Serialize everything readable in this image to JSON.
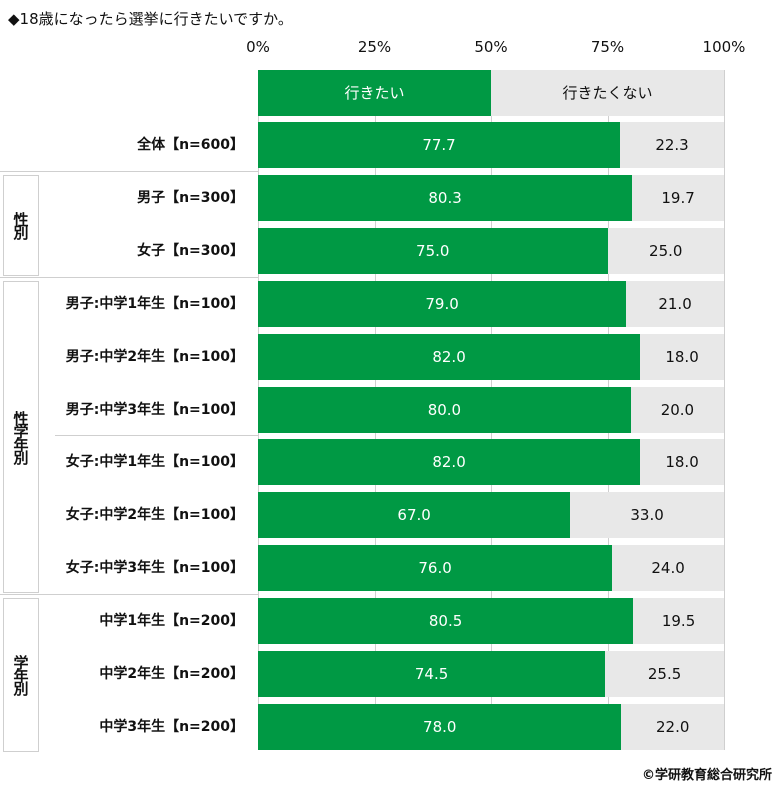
{
  "chart_data": {
    "type": "bar",
    "stacked": true,
    "orientation": "horizontal",
    "title": "◆18歳になったら選挙に行きたいですか。",
    "xlim": [
      0,
      100
    ],
    "xticks": [
      "0%",
      "25%",
      "50%",
      "75%",
      "100%"
    ],
    "legend": [
      {
        "name": "行きたい",
        "color": "#009944"
      },
      {
        "name": "行きたくない",
        "color": "#e8e8e8"
      }
    ],
    "legend_placement": "top",
    "categories": [
      "全体【n=600】",
      "男子【n=300】",
      "女子【n=300】",
      "男子:中学1年生【n=100】",
      "男子:中学2年生【n=100】",
      "男子:中学3年生【n=100】",
      "女子:中学1年生【n=100】",
      "女子:中学2年生【n=100】",
      "女子:中学3年生【n=100】",
      "中学1年生【n=200】",
      "中学2年生【n=200】",
      "中学3年生【n=200】"
    ],
    "series": [
      {
        "name": "行きたい",
        "values": [
          "77.7",
          "80.3",
          "75.0",
          "79.0",
          "82.0",
          "80.0",
          "82.0",
          "67.0",
          "76.0",
          "80.5",
          "74.5",
          "78.0"
        ]
      },
      {
        "name": "行きたくない",
        "values": [
          "22.3",
          "19.7",
          "25.0",
          "21.0",
          "18.0",
          "20.0",
          "18.0",
          "33.0",
          "24.0",
          "19.5",
          "25.5",
          "22.0"
        ]
      }
    ],
    "groups": [
      {
        "label": "性別",
        "from": 1,
        "to": 2
      },
      {
        "label": "性学年別",
        "from": 3,
        "to": 8
      },
      {
        "label": "学年別",
        "from": 9,
        "to": 11
      }
    ]
  },
  "credit": "©学研教育総合研究所"
}
